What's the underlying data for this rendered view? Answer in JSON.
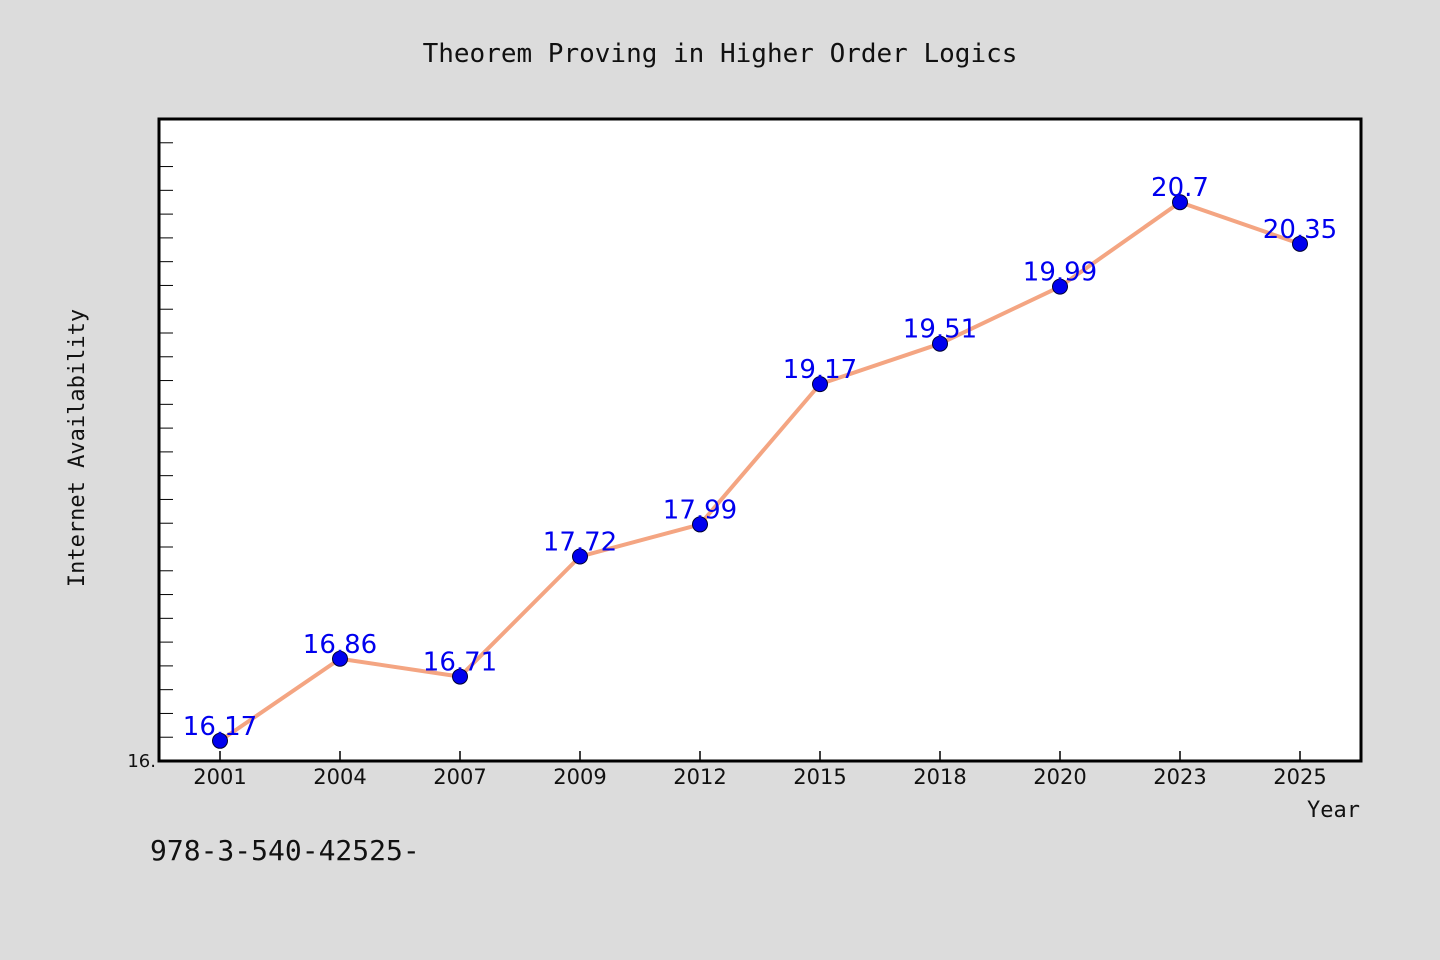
{
  "chart_data": {
    "type": "line",
    "title": "Theorem Proving in Higher Order Logics",
    "xlabel": "Year",
    "ylabel": "Internet Availability",
    "categories": [
      "2001",
      "2004",
      "2007",
      "2009",
      "2012",
      "2015",
      "2018",
      "2020",
      "2023",
      "2025"
    ],
    "series": [
      {
        "values": [
          16.17,
          16.86,
          16.71,
          17.72,
          17.99,
          19.17,
          19.51,
          19.99,
          20.7,
          20.35
        ],
        "labels": [
          "16.17",
          "16.86",
          "16.71",
          "17.72",
          "17.99",
          "19.17",
          "19.51",
          "19.99",
          "20.7",
          "20.35"
        ]
      }
    ],
    "y_tick_labels": [
      "16."
    ],
    "ylim": [
      16.0,
      21.4
    ],
    "grid": false,
    "colors": {
      "line": "#f4a582",
      "marker": "#0000ee",
      "label": "#0000ee",
      "background": "#dcdcdc",
      "plot": "#ffffff"
    }
  },
  "footer": {
    "caption": "978-3-540-42525-"
  }
}
